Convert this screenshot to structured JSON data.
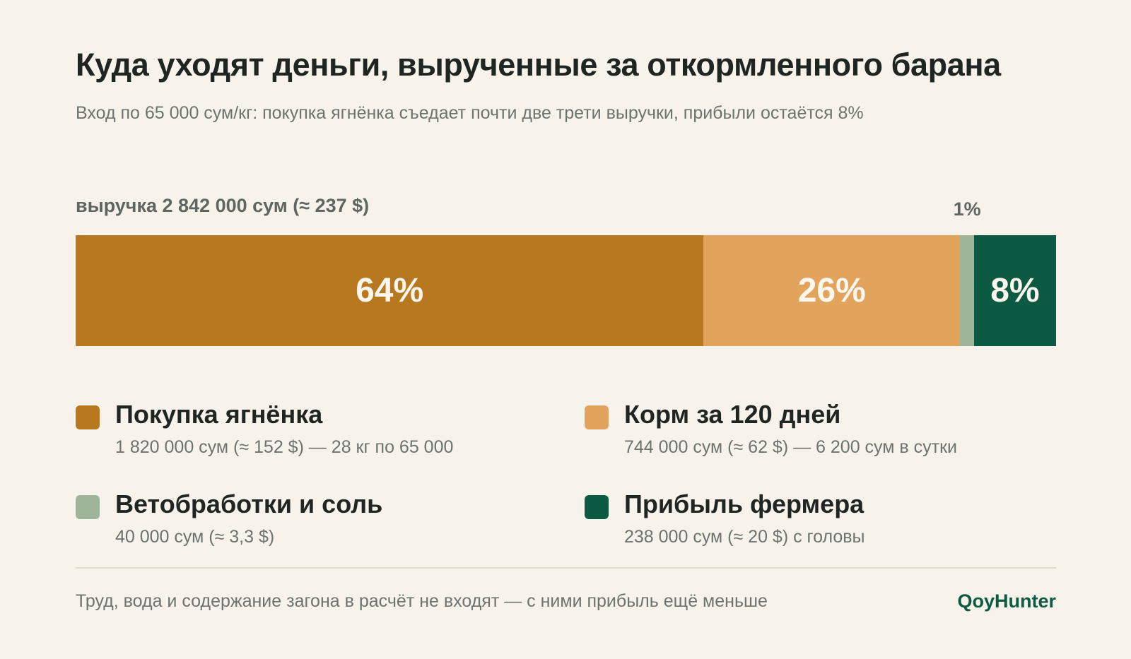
{
  "title": "Куда уходят деньги, вырученные за откормленного барана",
  "subtitle": "Вход по 65 000 сум/кг: покупка ягнёнка съедает почти две трети выручки, прибыли остаётся 8%",
  "total_label": "выручка 2 842 000 сум (≈ 237 $)",
  "colors": {
    "background": "#f7f3ea",
    "lamb": "#b8781f",
    "feed": "#e2a45c",
    "vet": "#9eb59a",
    "profit": "#0d5a43"
  },
  "chart_data": {
    "type": "bar",
    "orientation": "horizontal-stacked-100",
    "total": 2842000,
    "unit": "сум",
    "categories": [
      "Покупка ягнёнка",
      "Корм за 120 дней",
      "Ветобработки и соль",
      "Прибыль фермера"
    ],
    "values": [
      1820000,
      744000,
      40000,
      238000
    ],
    "percent_labels": [
      "64%",
      "26%",
      "1%",
      "8%"
    ],
    "colors": [
      "#b8781f",
      "#e2a45c",
      "#9eb59a",
      "#0d5a43"
    ]
  },
  "legend": [
    {
      "name": "Покупка ягнёнка",
      "detail": "1 820 000 сум (≈ 152 $) — 28 кг по 65 000"
    },
    {
      "name": "Корм за 120 дней",
      "detail": "744 000 сум (≈ 62 $) — 6 200 сум в сутки"
    },
    {
      "name": "Ветобработки и соль",
      "detail": "40 000 сум (≈ 3,3 $)"
    },
    {
      "name": "Прибыль фермера",
      "detail": "238 000 сум (≈ 20 $) с головы"
    }
  ],
  "footnote": "Труд, вода и содержание загона в расчёт не входят — с ними прибыль ещё меньше",
  "brand": "QoyHunter"
}
